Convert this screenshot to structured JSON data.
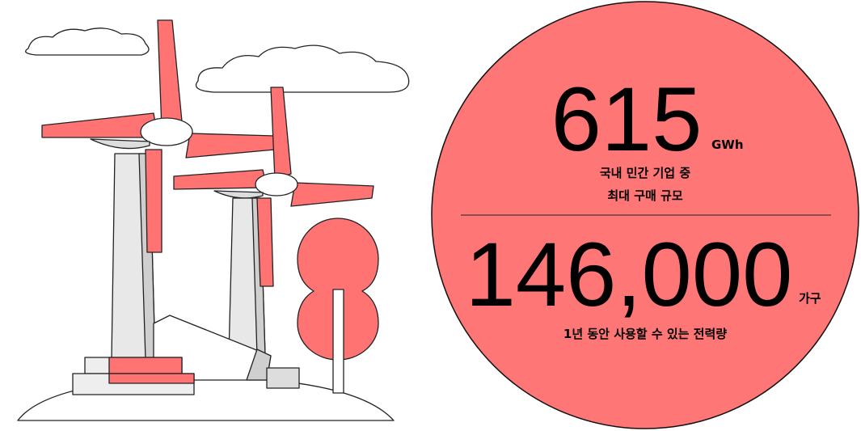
{
  "stats": [
    {
      "value": "615",
      "unit": "GWh",
      "description": [
        "국내 민간 기업 중",
        "최대 구매 규모"
      ]
    },
    {
      "value": "146,000",
      "unit": "가구",
      "description": [
        "1년 동안 사용할 수 있는 전력량"
      ]
    }
  ]
}
